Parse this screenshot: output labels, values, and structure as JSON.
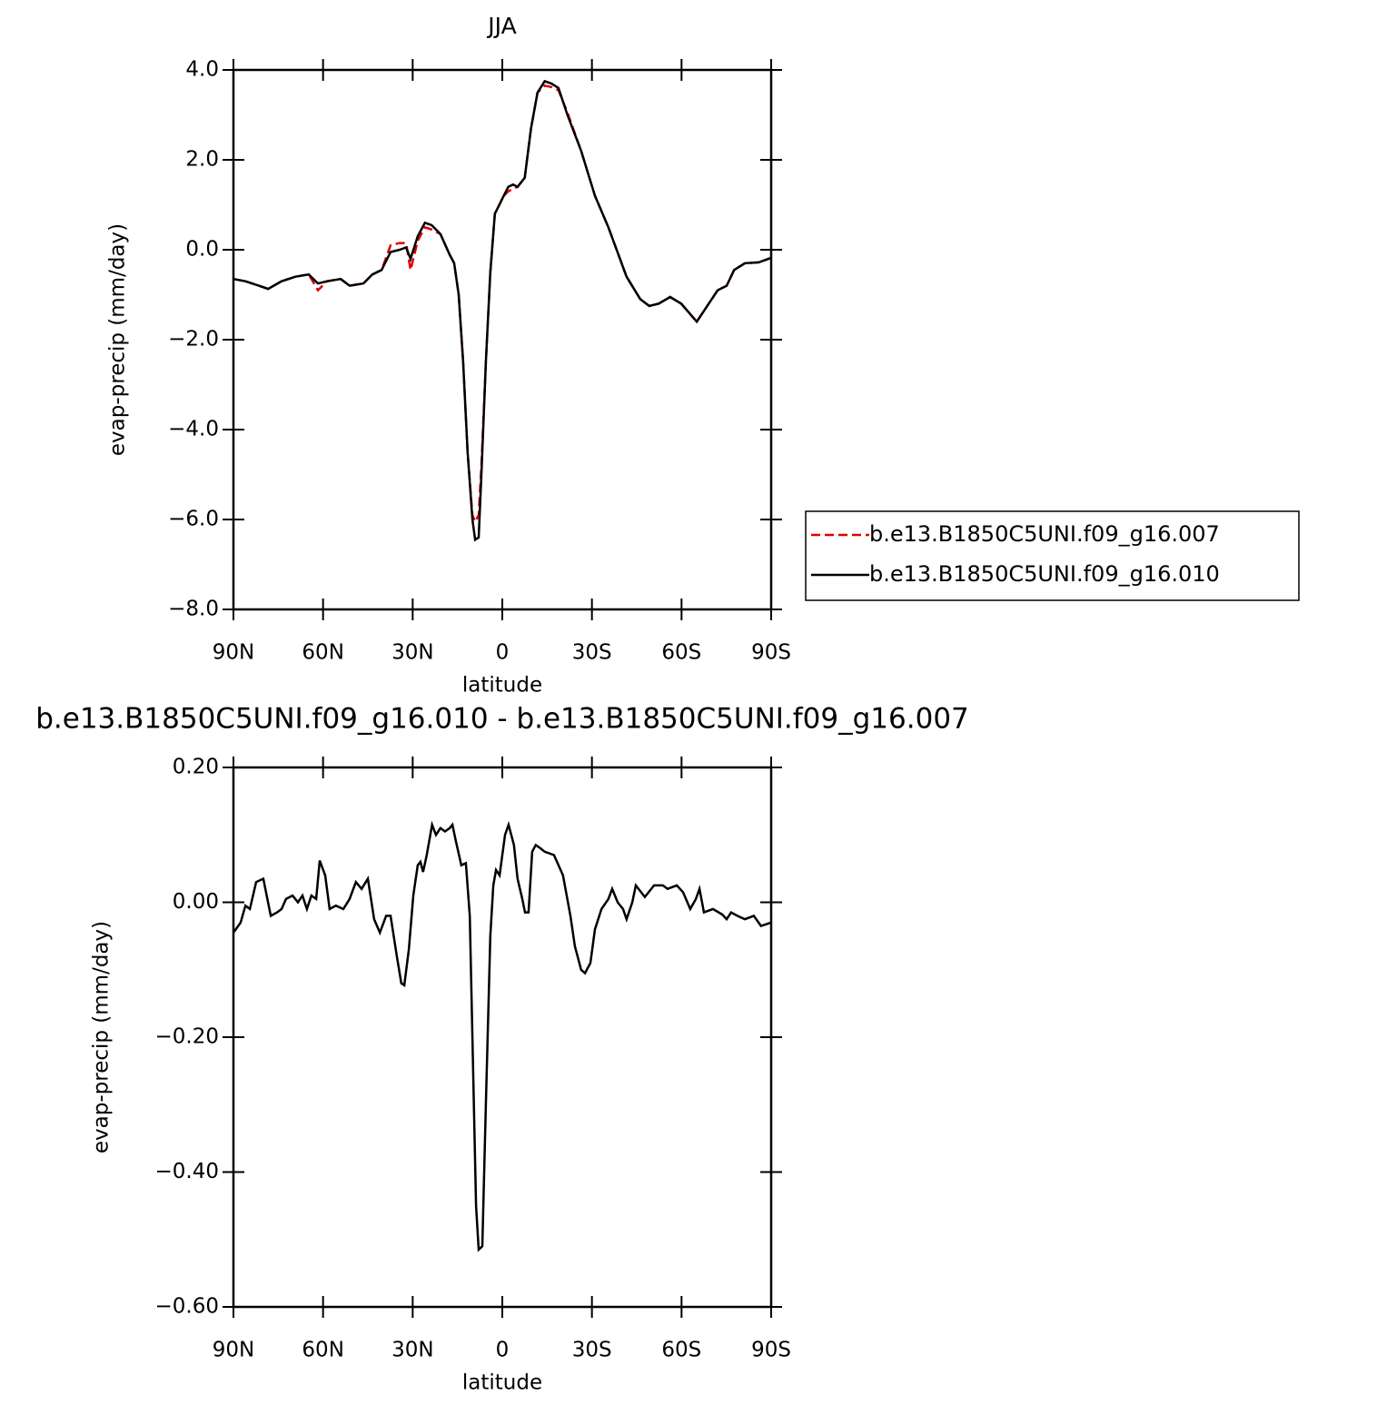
{
  "chart_data": [
    {
      "type": "line",
      "title": "JJA",
      "xlabel": "latitude",
      "ylabel": "evap-precip (mm/day)",
      "x": [
        90,
        86.0,
        81.5,
        78.4,
        73.9,
        69.3,
        64.8,
        61.7,
        58.7,
        54.1,
        51.1,
        46.5,
        43.5,
        40.4,
        37.4,
        34.4,
        32.2,
        30.7,
        28.3,
        25.9,
        23.7,
        20.7,
        17.7,
        16.1,
        14.6,
        13.1,
        11.6,
        10.0,
        9.1,
        7.9,
        7.0,
        5.5,
        4.0,
        2.5,
        1.0,
        -0.5,
        -2.0,
        -3.6,
        -5.1,
        -7.5,
        -9.6,
        -11.8,
        -14.2,
        -16.4,
        -18.8,
        -21.8,
        -26.4,
        -31.0,
        -35.5,
        -41.6,
        -46.2,
        -49.2,
        -52.3,
        -56.2,
        -59.9,
        -65.1,
        -68.1,
        -72.1,
        -75.1,
        -77.6,
        -81.2,
        -85.8,
        -90
      ],
      "series": [
        {
          "name": "b.e13.B1850C5UNI.f09_g16.007",
          "color": "#e00000",
          "dash": true,
          "values": [
            -0.65,
            -0.7,
            -0.8,
            -0.87,
            -0.7,
            -0.6,
            -0.55,
            -0.9,
            -0.7,
            -0.65,
            -0.8,
            -0.75,
            -0.55,
            -0.45,
            0.1,
            0.15,
            0.15,
            -0.45,
            0.2,
            0.5,
            0.45,
            0.35,
            -0.1,
            -0.3,
            -1.0,
            -2.5,
            -4.5,
            -5.9,
            -6.05,
            -5.9,
            -4.8,
            -2.5,
            -0.5,
            0.8,
            1.0,
            1.2,
            1.3,
            1.35,
            1.4,
            1.6,
            2.7,
            3.5,
            3.65,
            3.62,
            3.55,
            3.05,
            2.2,
            1.2,
            0.5,
            -0.6,
            -1.1,
            -1.25,
            -1.2,
            -1.05,
            -1.2,
            -1.6,
            -1.3,
            -0.9,
            -0.8,
            -0.45,
            -0.3,
            -0.28,
            -0.18
          ]
        },
        {
          "name": "b.e13.B1850C5UNI.f09_g16.010",
          "color": "#000000",
          "dash": false,
          "values": [
            -0.65,
            -0.7,
            -0.8,
            -0.87,
            -0.7,
            -0.6,
            -0.55,
            -0.75,
            -0.7,
            -0.65,
            -0.8,
            -0.75,
            -0.55,
            -0.45,
            -0.05,
            0.0,
            0.05,
            -0.2,
            0.3,
            0.6,
            0.55,
            0.35,
            -0.1,
            -0.3,
            -1.0,
            -2.5,
            -4.5,
            -6.0,
            -6.45,
            -6.4,
            -5.0,
            -2.5,
            -0.5,
            0.8,
            1.0,
            1.2,
            1.4,
            1.45,
            1.4,
            1.6,
            2.7,
            3.5,
            3.75,
            3.7,
            3.6,
            3.0,
            2.2,
            1.2,
            0.5,
            -0.6,
            -1.1,
            -1.25,
            -1.2,
            -1.05,
            -1.2,
            -1.6,
            -1.3,
            -0.9,
            -0.8,
            -0.45,
            -0.3,
            -0.28,
            -0.18
          ]
        }
      ],
      "xlim": [
        90,
        -90
      ],
      "xticks": [
        {
          "value": 90,
          "label": "90N"
        },
        {
          "value": 60,
          "label": "60N"
        },
        {
          "value": 30,
          "label": "30N"
        },
        0,
        {
          "value": -30,
          "label": "30S"
        },
        {
          "value": -60,
          "label": "60S"
        },
        {
          "value": -90,
          "label": "90S"
        }
      ],
      "ylim": [
        -8,
        4
      ],
      "yticks": [
        {
          "value": 4,
          "label": "4.0"
        },
        {
          "value": 2,
          "label": "2.0"
        },
        {
          "value": 0,
          "label": "0.0"
        },
        {
          "value": -2,
          "label": "−2.0"
        },
        {
          "value": -4,
          "label": "−4.0"
        },
        {
          "value": -6,
          "label": "−6.0"
        },
        {
          "value": -8,
          "label": "−8.0"
        }
      ],
      "legend": "right"
    },
    {
      "type": "line",
      "title": "b.e13.B1850C5UNI.f09_g16.010 - b.e13.B1850C5UNI.f09_g16.007",
      "xlabel": "latitude",
      "ylabel": "evap-precip (mm/day)",
      "x": [
        90,
        87.6,
        86.0,
        84.5,
        82.4,
        80.0,
        77.5,
        75.4,
        73.9,
        72.4,
        70.2,
        68.4,
        66.9,
        65.4,
        63.9,
        62.3,
        61.1,
        59.3,
        57.8,
        55.7,
        53.2,
        51.1,
        49.0,
        47.1,
        45.0,
        42.9,
        41.0,
        38.9,
        37.4,
        35.3,
        33.8,
        32.8,
        31.3,
        29.8,
        28.3,
        27.4,
        26.5,
        25.3,
        23.5,
        22.2,
        20.7,
        19.2,
        17.6,
        16.7,
        15.5,
        13.7,
        12.2,
        10.9,
        10.0,
        8.8,
        7.9,
        6.7,
        5.5,
        4.0,
        3.0,
        2.1,
        0.9,
        -0.9,
        -2.1,
        -3.9,
        -5.1,
        -6.7,
        -7.6,
        -8.8,
        -10.0,
        -11.2,
        -12.8,
        -14.2,
        -17.3,
        -20.3,
        -22.8,
        -24.3,
        -26.4,
        -27.7,
        -29.5,
        -31.0,
        -33.2,
        -35.5,
        -36.8,
        -38.6,
        -40.4,
        -41.6,
        -43.5,
        -44.7,
        -47.7,
        -50.8,
        -53.8,
        -55.3,
        -58.4,
        -60.5,
        -62.9,
        -64.8,
        -66.0,
        -67.5,
        -70.5,
        -73.6,
        -75.1,
        -76.6,
        -78.7,
        -81.2,
        -84.2,
        -86.6,
        -90
      ],
      "series": [
        {
          "color": "#000000",
          "dash": false,
          "values": [
            -0.045,
            -0.03,
            -0.005,
            -0.01,
            0.03,
            0.035,
            -0.02,
            -0.015,
            -0.01,
            0.005,
            0.01,
            0.0,
            0.01,
            -0.01,
            0.01,
            0.005,
            0.062,
            0.04,
            -0.01,
            -0.005,
            -0.01,
            0.005,
            0.03,
            0.02,
            0.035,
            -0.025,
            -0.045,
            -0.02,
            -0.02,
            -0.08,
            -0.12,
            -0.123,
            -0.07,
            0.01,
            0.055,
            0.06,
            0.045,
            0.07,
            0.115,
            0.1,
            0.11,
            0.105,
            0.11,
            0.115,
            0.09,
            0.055,
            0.058,
            -0.02,
            -0.2,
            -0.45,
            -0.515,
            -0.51,
            -0.3,
            -0.05,
            0.025,
            0.048,
            0.04,
            0.1,
            0.115,
            0.085,
            0.035,
            0.005,
            -0.015,
            -0.015,
            0.075,
            0.085,
            0.08,
            0.075,
            0.07,
            0.04,
            -0.02,
            -0.065,
            -0.1,
            -0.105,
            -0.09,
            -0.04,
            -0.01,
            0.005,
            0.02,
            0.0,
            -0.01,
            -0.025,
            0.0,
            0.025,
            0.008,
            0.025,
            0.025,
            0.02,
            0.025,
            0.015,
            -0.01,
            0.005,
            0.02,
            -0.015,
            -0.01,
            -0.018,
            -0.025,
            -0.015,
            -0.02,
            -0.025,
            -0.02,
            -0.035,
            -0.03
          ]
        }
      ],
      "xlim": [
        90,
        -90
      ],
      "xticks": [
        {
          "value": 90,
          "label": "90N"
        },
        {
          "value": 60,
          "label": "60N"
        },
        {
          "value": 30,
          "label": "30N"
        },
        0,
        {
          "value": -30,
          "label": "30S"
        },
        {
          "value": -60,
          "label": "60S"
        },
        {
          "value": -90,
          "label": "90S"
        }
      ],
      "ylim": [
        -0.6,
        0.2
      ],
      "yticks": [
        {
          "value": 0.2,
          "label": "0.20"
        },
        {
          "value": 0,
          "label": "0.00"
        },
        {
          "value": -0.2,
          "label": "−0.20"
        },
        {
          "value": -0.4,
          "label": "−0.40"
        },
        {
          "value": -0.6,
          "label": "−0.60"
        }
      ]
    }
  ]
}
